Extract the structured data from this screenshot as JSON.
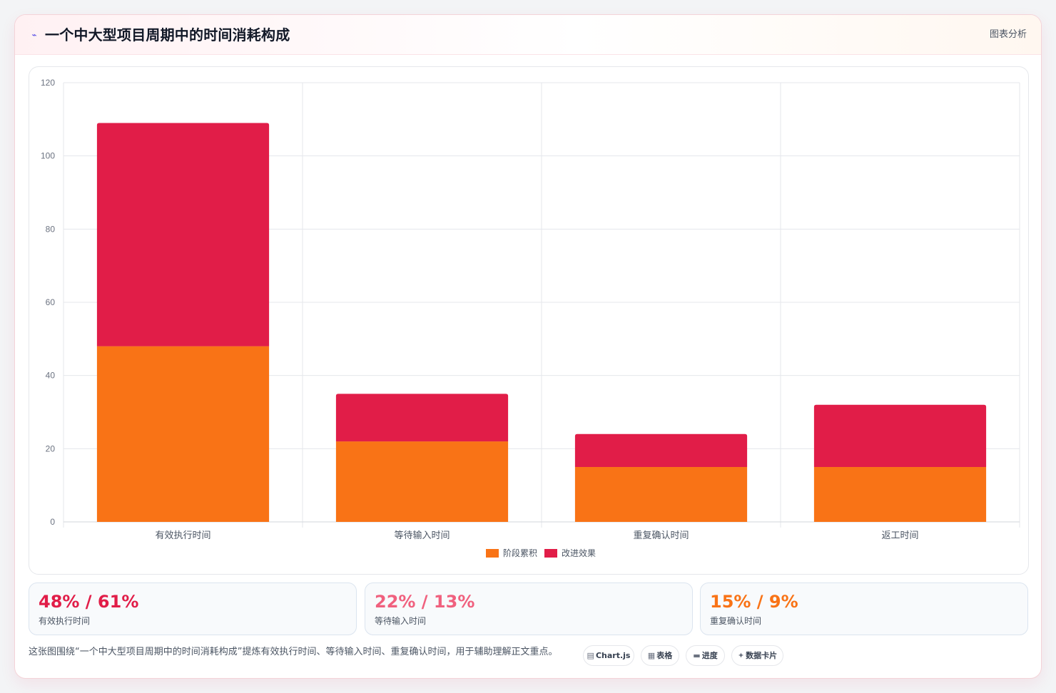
{
  "header": {
    "title": "一个中大型项目周期中的时间消耗构成",
    "icon": "sparkle-icon",
    "tag": "图表分析"
  },
  "chart_data": {
    "type": "bar",
    "stacked": true,
    "categories": [
      "有效执行时间",
      "等待输入时间",
      "重复确认时间",
      "返工时间"
    ],
    "series": [
      {
        "name": "阶段累积",
        "values": [
          48,
          22,
          15,
          15
        ],
        "color": "#f97316"
      },
      {
        "name": "改进效果",
        "values": [
          61,
          13,
          9,
          17
        ],
        "color": "#e11d48"
      }
    ],
    "ylim": [
      0,
      120
    ],
    "yticks": [
      0,
      20,
      40,
      60,
      80,
      100,
      120
    ],
    "grid": true,
    "legend": "bottom-center"
  },
  "stats": [
    {
      "value": "48% / 61%",
      "label": "有效执行时间",
      "color": "#e11d48"
    },
    {
      "value": "22% / 13%",
      "label": "等待输入时间",
      "color": "#f0607e"
    },
    {
      "value": "15% / 9%",
      "label": "重复确认时间",
      "color": "#f97316"
    }
  ],
  "caption": "这张图围绕“一个中大型项目周期中的时间消耗构成”提炼有效执行时间、等待输入时间、重复确认时间，用于辅助理解正文重点。",
  "chips": [
    {
      "icon": "chart-icon",
      "glyph": "▤",
      "label": "Chart.js"
    },
    {
      "icon": "table-icon",
      "glyph": "▦",
      "label": "表格"
    },
    {
      "icon": "progress-icon",
      "glyph": "▬",
      "label": "进度"
    },
    {
      "icon": "sparkle-icon",
      "glyph": "✦",
      "label": "数据卡片"
    }
  ]
}
